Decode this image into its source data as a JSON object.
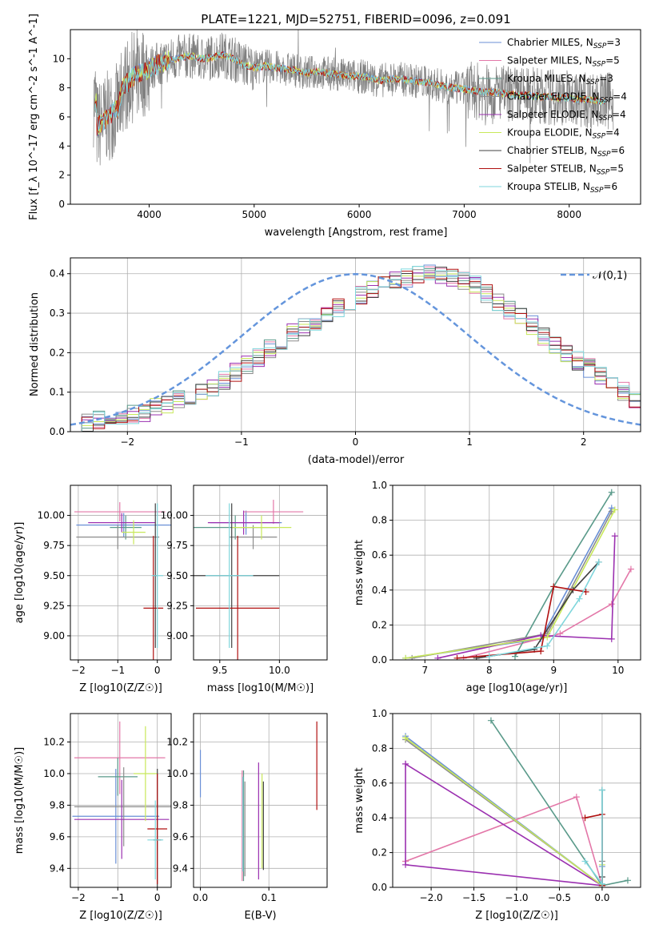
{
  "figure": {
    "title": "PLATE=1221, MJD=52751, FIBERID=0096, z=0.091"
  },
  "colors": [
    "#6a8fd6",
    "#e377a8",
    "#5a9a8a",
    "#8c8c8c",
    "#9b30b0",
    "#c8e85a",
    "#404040",
    "#b01010",
    "#7fd6dc",
    "#e0901a",
    "#d07030",
    "#b0b0b0"
  ],
  "chart_data": [
    {
      "id": "spectrum",
      "type": "line",
      "xlabel": "wavelength [Angstrom, rest frame]",
      "ylabel": "Flux [f_λ 10^-17 erg cm^-2 s^-1 A^-1]",
      "xlim": [
        3250,
        8680
      ],
      "ylim": [
        0,
        12
      ],
      "xticks": [
        4000,
        5000,
        6000,
        7000,
        8000
      ],
      "yticks": [
        0,
        2,
        4,
        6,
        8,
        10
      ],
      "grid": false,
      "legend_position": "top-right",
      "legend": [
        "Chabrier MILES, N_SSP=3",
        "Salpeter MILES, N_SSP=5",
        "Kroupa MILES, N_SSP=3",
        "Chabrier ELODIE, N_SSP=4",
        "Salpeter ELODIE, N_SSP=4",
        "Kroupa ELODIE, N_SSP=4",
        "Chabrier STELIB, N_SSP=6",
        "Salpeter STELIB, N_SSP=5",
        "Kroupa STELIB, N_SSP=6"
      ],
      "data_series": {
        "name": "data",
        "x": [
          3500,
          3550,
          3600,
          3650,
          3700,
          3750,
          3800,
          3850,
          3900,
          3950,
          4000,
          4100,
          4200,
          4300,
          4400,
          4500,
          4600,
          4700,
          4800,
          4900,
          5000,
          5100,
          5200,
          5300,
          5400,
          5500,
          5600,
          5700,
          5800,
          5900,
          6000,
          6100,
          6200,
          6300,
          6400,
          6500,
          6600,
          6700,
          6800,
          6900,
          7000,
          7100,
          7200,
          7300,
          7400,
          7500,
          7600,
          7700,
          7800,
          7900,
          8000,
          8100,
          8200,
          8300,
          8400
        ],
        "y": [
          5.3,
          5.6,
          6.0,
          6.3,
          6.6,
          8.0,
          8.4,
          8.8,
          9.0,
          9.1,
          9.3,
          9.7,
          9.9,
          10.1,
          10.2,
          10.0,
          10.1,
          10.3,
          10.0,
          9.6,
          9.4,
          9.5,
          9.4,
          9.3,
          9.2,
          9.0,
          9.1,
          9.0,
          8.9,
          8.8,
          8.8,
          8.7,
          8.5,
          8.6,
          8.6,
          8.5,
          8.4,
          8.3,
          8.1,
          8.0,
          7.9,
          7.8,
          7.7,
          7.7,
          7.6,
          7.5,
          7.5,
          7.4,
          7.4,
          7.3,
          7.3,
          7.2,
          7.2,
          7.1,
          7.1
        ]
      }
    },
    {
      "id": "residuals",
      "type": "histogram",
      "xlabel": "(data-model)/error",
      "ylabel": "Normed distribution",
      "xlim": [
        -2.5,
        2.5
      ],
      "ylim": [
        0,
        0.44
      ],
      "xticks": [
        -2,
        -1,
        0,
        1,
        2
      ],
      "yticks": [
        0.0,
        0.1,
        0.2,
        0.3,
        0.4
      ],
      "grid": true,
      "legend_position": "top-right",
      "legend": [
        "𝒩(0,1)"
      ],
      "bin_width": 0.1,
      "bin_start": -2.5,
      "histogram_values": [
        0.02,
        0.025,
        0.03,
        0.035,
        0.04,
        0.045,
        0.05,
        0.06,
        0.07,
        0.08,
        0.09,
        0.1,
        0.115,
        0.13,
        0.15,
        0.17,
        0.19,
        0.21,
        0.23,
        0.25,
        0.265,
        0.28,
        0.3,
        0.315,
        0.33,
        0.345,
        0.36,
        0.37,
        0.38,
        0.39,
        0.395,
        0.4,
        0.395,
        0.39,
        0.38,
        0.37,
        0.35,
        0.33,
        0.31,
        0.29,
        0.27,
        0.24,
        0.22,
        0.2,
        0.18,
        0.16,
        0.14,
        0.12,
        0.1,
        0.085,
        0.07
      ]
    },
    {
      "id": "age-vs-Z",
      "type": "errorbar",
      "xlabel": "Z [log10(Z/Z☉)]",
      "ylabel": "age [log10(age/yr)]",
      "xlim": [
        -2.2,
        0.35
      ],
      "ylim": [
        8.8,
        10.25
      ],
      "xticks": [
        -2,
        -1,
        0
      ],
      "yticks": [
        9.0,
        9.25,
        9.5,
        9.75,
        10.0
      ],
      "grid": true,
      "points": [
        {
          "x": -0.85,
          "xerr": 1.2,
          "y": 9.92,
          "yerr": 0.1
        },
        {
          "x": -0.95,
          "xerr": 1.15,
          "y": 10.03,
          "yerr": 0.08
        },
        {
          "x": -0.8,
          "xerr": 0.4,
          "y": 9.9,
          "yerr": 0.1
        },
        {
          "x": -1.0,
          "xerr": 1.05,
          "y": 9.82,
          "yerr": 0.1
        },
        {
          "x": -0.9,
          "xerr": 0.85,
          "y": 9.94,
          "yerr": 0.08
        },
        {
          "x": -0.6,
          "xerr": 0.3,
          "y": 9.86,
          "yerr": 0.1
        },
        {
          "x": -0.05,
          "xerr": 0.05,
          "y": 9.5,
          "yerr": 0.6
        },
        {
          "x": -0.1,
          "xerr": 0.25,
          "y": 9.23,
          "yerr": 0.6
        },
        {
          "x": 0.0,
          "xerr": 0.15,
          "y": 9.5,
          "yerr": 0.6
        }
      ]
    },
    {
      "id": "age-vs-mass",
      "type": "errorbar",
      "xlabel": "mass [log10(M/M☉)]",
      "ylabel": "",
      "xlim": [
        9.28,
        10.4
      ],
      "ylim": [
        8.8,
        10.25
      ],
      "xticks": [
        9.5,
        10.0
      ],
      "yticks": [
        9.0,
        9.25,
        9.5,
        9.75,
        10.0
      ],
      "grid": true,
      "points": [
        {
          "x": 9.72,
          "xerr": 0.3,
          "y": 9.94,
          "yerr": 0.1
        },
        {
          "x": 9.95,
          "xerr": 0.25,
          "y": 10.03,
          "yerr": 0.1
        },
        {
          "x": 9.63,
          "xerr": 0.35,
          "y": 9.9,
          "yerr": 0.1
        },
        {
          "x": 9.78,
          "xerr": 0.2,
          "y": 9.82,
          "yerr": 0.1
        },
        {
          "x": 9.7,
          "xerr": 0.3,
          "y": 9.94,
          "yerr": 0.1
        },
        {
          "x": 9.85,
          "xerr": 0.25,
          "y": 9.9,
          "yerr": 0.1
        },
        {
          "x": 9.6,
          "xerr": 0.4,
          "y": 9.5,
          "yerr": 0.6
        },
        {
          "x": 9.65,
          "xerr": 0.35,
          "y": 9.23,
          "yerr": 0.6
        },
        {
          "x": 9.58,
          "xerr": 0.2,
          "y": 9.5,
          "yerr": 0.6
        }
      ]
    },
    {
      "id": "massweight-vs-age",
      "type": "line",
      "xlabel": "age [log10(age/yr)]",
      "ylabel": "mass weight",
      "xlim": [
        6.5,
        10.35
      ],
      "ylim": [
        0,
        1.0
      ],
      "xticks": [
        7,
        8,
        9,
        10
      ],
      "yticks": [
        0.0,
        0.2,
        0.4,
        0.6,
        0.8,
        1.0
      ],
      "grid": true,
      "series": [
        {
          "x": [
            6.7,
            8.8,
            9.9
          ],
          "y": [
            0.01,
            0.12,
            0.87
          ]
        },
        {
          "x": [
            7.6,
            9.1,
            9.9,
            10.2
          ],
          "y": [
            0.01,
            0.15,
            0.32,
            0.52
          ]
        },
        {
          "x": [
            8.4,
            9.0,
            9.9
          ],
          "y": [
            0.02,
            0.42,
            0.96
          ]
        },
        {
          "x": [
            6.8,
            8.9,
            9.9
          ],
          "y": [
            0.01,
            0.15,
            0.85
          ]
        },
        {
          "x": [
            7.2,
            8.8,
            9.9,
            9.95
          ],
          "y": [
            0.01,
            0.14,
            0.12,
            0.71
          ]
        },
        {
          "x": [
            6.7,
            8.9,
            9.95
          ],
          "y": [
            0.01,
            0.13,
            0.86
          ]
        },
        {
          "x": [
            7.8,
            8.7,
            9.3,
            9.7
          ],
          "y": [
            0.01,
            0.06,
            0.4,
            0.56
          ]
        },
        {
          "x": [
            7.5,
            8.8,
            9.0,
            9.5
          ],
          "y": [
            0.01,
            0.05,
            0.42,
            0.39
          ]
        },
        {
          "x": [
            8.0,
            8.9,
            9.4,
            9.7
          ],
          "y": [
            0.02,
            0.08,
            0.35,
            0.56
          ]
        }
      ]
    },
    {
      "id": "mass-vs-Z",
      "type": "errorbar",
      "xlabel": "Z [log10(Z/Z☉)]",
      "ylabel": "mass [log10(M/M☉)]",
      "xlim": [
        -2.2,
        0.35
      ],
      "ylim": [
        9.28,
        10.38
      ],
      "xticks": [
        -2,
        -1,
        0
      ],
      "yticks": [
        9.4,
        9.6,
        9.8,
        10.0,
        10.2
      ],
      "grid": true,
      "points": [
        {
          "x": -1.05,
          "xerr": 1.1,
          "y": 9.73,
          "yerr": 0.3
        },
        {
          "x": -0.95,
          "xerr": 1.15,
          "y": 10.1,
          "yerr": 0.23
        },
        {
          "x": -1.0,
          "xerr": 0.5,
          "y": 9.98,
          "yerr": 0.12
        },
        {
          "x": -0.85,
          "xerr": 1.25,
          "y": 9.79,
          "yerr": 0.25
        },
        {
          "x": -0.9,
          "xerr": 1.2,
          "y": 9.71,
          "yerr": 0.25
        },
        {
          "x": -0.3,
          "xerr": 0.3,
          "y": 10.0,
          "yerr": 0.3
        },
        {
          "x": 0.0,
          "xerr": 0.1,
          "y": 9.58,
          "yerr": 0.45
        },
        {
          "x": 0.0,
          "xerr": 0.25,
          "y": 9.65,
          "yerr": 0.35
        },
        {
          "x": -0.05,
          "xerr": 0.2,
          "y": 9.58,
          "yerr": 0.25
        }
      ]
    },
    {
      "id": "mass-vs-EBV",
      "type": "errorbar",
      "xlabel": "E(B-V)",
      "ylabel": "",
      "xlim": [
        -0.01,
        0.185
      ],
      "ylim": [
        9.28,
        10.38
      ],
      "xticks": [
        0.0,
        0.1
      ],
      "yticks": [
        9.4,
        9.6,
        9.8,
        10.0,
        10.2
      ],
      "grid": true,
      "points": [
        {
          "x": 0.0,
          "y": 10.0,
          "yerr": 0.15
        },
        {
          "x": 0.061,
          "y": 9.67,
          "yerr": 0.35
        },
        {
          "x": 0.063,
          "y": 9.67,
          "yerr": 0.35
        },
        {
          "x": 0.065,
          "y": 9.65,
          "yerr": 0.3
        },
        {
          "x": 0.085,
          "y": 9.7,
          "yerr": 0.37
        },
        {
          "x": 0.09,
          "y": 9.7,
          "yerr": 0.3
        },
        {
          "x": 0.092,
          "y": 9.67,
          "yerr": 0.28
        },
        {
          "x": 0.17,
          "y": 10.05,
          "yerr": 0.28
        },
        {
          "x": 0.062,
          "y": 9.68,
          "yerr": 0.3
        }
      ]
    },
    {
      "id": "massweight-vs-Z",
      "type": "line",
      "xlabel": "Z [log10(Z/Z☉)]",
      "ylabel": "mass weight",
      "xlim": [
        -2.45,
        0.45
      ],
      "ylim": [
        0,
        1.0
      ],
      "xticks": [
        -2.0,
        -1.5,
        -1.0,
        -0.5,
        0.0
      ],
      "yticks": [
        0.0,
        0.2,
        0.4,
        0.6,
        0.8,
        1.0
      ],
      "grid": true,
      "series": [
        {
          "x": [
            -2.3,
            0.0,
            0.0
          ],
          "y": [
            0.87,
            0.01,
            0.12
          ]
        },
        {
          "x": [
            -2.3,
            -0.3,
            0.0
          ],
          "y": [
            0.15,
            0.52,
            0.01
          ]
        },
        {
          "x": [
            -1.3,
            0.0,
            0.3
          ],
          "y": [
            0.96,
            0.01,
            0.04
          ]
        },
        {
          "x": [
            -2.3,
            0.0,
            0.0
          ],
          "y": [
            0.85,
            0.01,
            0.15
          ]
        },
        {
          "x": [
            -2.3,
            -2.3,
            0.0,
            -2.3
          ],
          "y": [
            0.71,
            0.13,
            0.01,
            0.71
          ]
        },
        {
          "x": [
            -2.3,
            0.0,
            0.0
          ],
          "y": [
            0.86,
            0.01,
            0.13
          ]
        },
        {
          "x": [
            0.0,
            0.0,
            0.0
          ],
          "y": [
            0.56,
            0.06,
            0.01
          ]
        },
        {
          "x": [
            -0.2,
            0.0,
            0.0
          ],
          "y": [
            0.4,
            0.42,
            0.01
          ]
        },
        {
          "x": [
            0.0,
            0.0,
            -0.2
          ],
          "y": [
            0.56,
            0.02,
            0.15
          ]
        }
      ]
    }
  ]
}
